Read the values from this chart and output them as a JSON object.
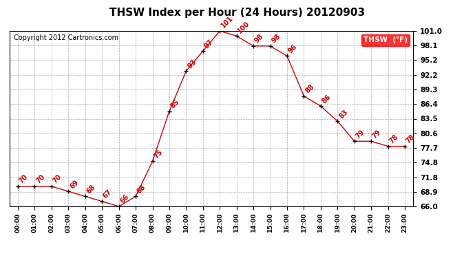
{
  "title": "THSW Index per Hour (24 Hours) 20120903",
  "copyright": "Copyright 2012 Cartronics.com",
  "legend_label": "THSW  (°F)",
  "hours": [
    0,
    1,
    2,
    3,
    4,
    5,
    6,
    7,
    8,
    9,
    10,
    11,
    12,
    13,
    14,
    15,
    16,
    17,
    18,
    19,
    20,
    21,
    22,
    23
  ],
  "values": [
    70,
    70,
    70,
    69,
    68,
    67,
    66,
    68,
    75,
    85,
    93,
    97,
    101,
    100,
    98,
    98,
    96,
    88,
    86,
    83,
    79,
    79,
    78,
    78
  ],
  "ylim": [
    66.0,
    101.0
  ],
  "yticks": [
    66.0,
    68.9,
    71.8,
    74.8,
    77.7,
    80.6,
    83.5,
    86.4,
    89.3,
    92.2,
    95.2,
    98.1,
    101.0
  ],
  "line_color": "#cc0000",
  "marker_color": "#000000",
  "label_color": "#cc0000",
  "bg_color": "#ffffff",
  "grid_color": "#aaaaaa",
  "title_fontsize": 11,
  "copyright_fontsize": 7,
  "label_fontsize": 7
}
